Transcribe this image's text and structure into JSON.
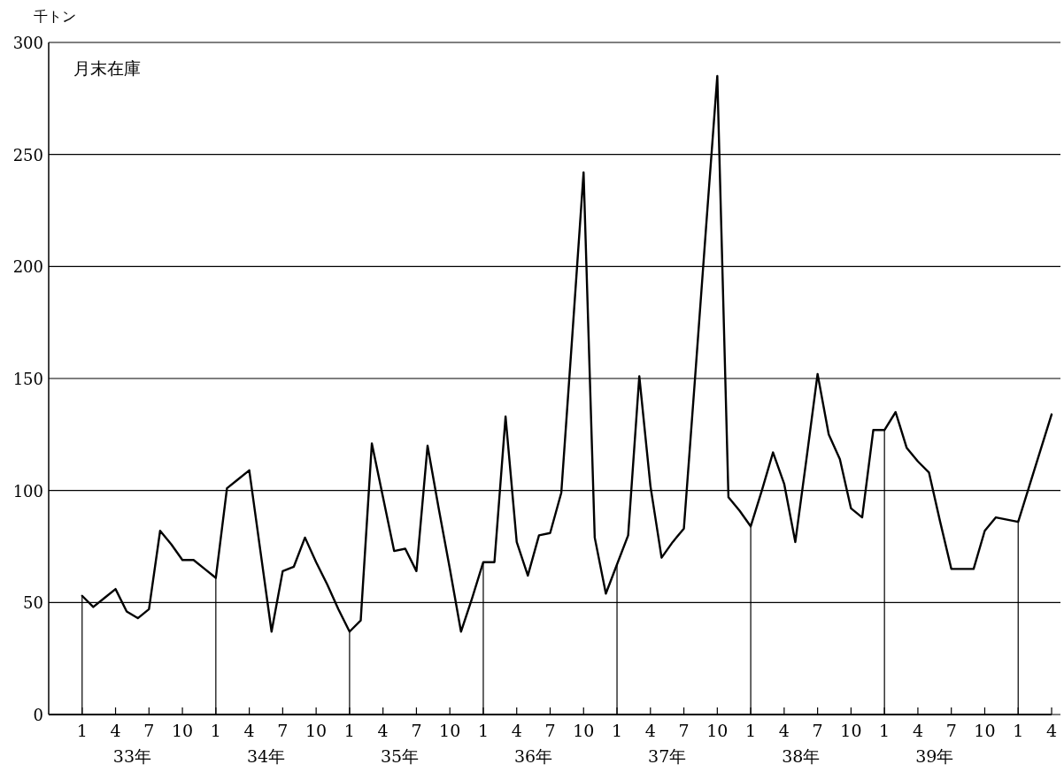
{
  "chart_data": {
    "type": "line",
    "title": "月末在庫",
    "ylabel": "千トン",
    "categories": [
      "1",
      null,
      null,
      "4",
      null,
      null,
      "7",
      null,
      null,
      "10",
      null,
      null,
      "1",
      null,
      null,
      "4",
      null,
      null,
      "7",
      null,
      null,
      "10",
      null,
      null,
      "1",
      null,
      null,
      "4",
      null,
      null,
      "7",
      null,
      null,
      "10",
      null,
      null,
      "1",
      null,
      null,
      "4",
      null,
      null,
      "7",
      null,
      null,
      "10",
      null,
      null,
      "1",
      null,
      null,
      "4",
      null,
      null,
      "7",
      null,
      null,
      "10",
      null,
      null,
      "1",
      null,
      null,
      "4",
      null,
      null,
      "7",
      null,
      null,
      "10",
      null,
      null,
      "1",
      null,
      null,
      "4",
      null,
      null,
      "7",
      null,
      null,
      "10",
      null,
      null,
      "1",
      null,
      null,
      "4"
    ],
    "series": [
      {
        "color": "#000000",
        "values": [
          53,
          48,
          52,
          56,
          46,
          43,
          47,
          82,
          76,
          69,
          69,
          65,
          61,
          101,
          105,
          109,
          73,
          37,
          64,
          66,
          79,
          68,
          58,
          47,
          37,
          42,
          121,
          97,
          73,
          74,
          64,
          120,
          92,
          65,
          37,
          52,
          68,
          68,
          133,
          77,
          62,
          80,
          81,
          99,
          170,
          242,
          79,
          54,
          67,
          80,
          151,
          102,
          70,
          77,
          83,
          150,
          218,
          285,
          97,
          91,
          84,
          100,
          117,
          103,
          77,
          114,
          152,
          125,
          114,
          92,
          88,
          127,
          127,
          135,
          119,
          113,
          108,
          86,
          65,
          65,
          65,
          82,
          88,
          87,
          86,
          102,
          118,
          134
        ]
      },
      {
        "type": "bar",
        "color": "#000000",
        "values": [
          53,
          null,
          null,
          null,
          null,
          null,
          null,
          null,
          null,
          null,
          null,
          null,
          61,
          null,
          null,
          null,
          null,
          null,
          null,
          null,
          null,
          null,
          null,
          null,
          37,
          null,
          null,
          null,
          null,
          null,
          null,
          null,
          null,
          null,
          null,
          null,
          68,
          null,
          null,
          null,
          null,
          null,
          null,
          null,
          null,
          null,
          null,
          null,
          67,
          null,
          null,
          null,
          null,
          null,
          null,
          null,
          null,
          null,
          null,
          null,
          84,
          null,
          null,
          null,
          null,
          null,
          null,
          null,
          null,
          null,
          null,
          null,
          127,
          null,
          null,
          null,
          null,
          null,
          null,
          null,
          null,
          null,
          null,
          null,
          86,
          null,
          null,
          null
        ]
      }
    ],
    "ylim": [
      0,
      300
    ],
    "yticks": [
      0,
      50,
      100,
      150,
      200,
      250,
      300
    ],
    "grid": "y",
    "annotations": [
      "33年",
      "34年",
      "35年",
      "36年",
      "37年",
      "38年",
      "39年"
    ]
  }
}
